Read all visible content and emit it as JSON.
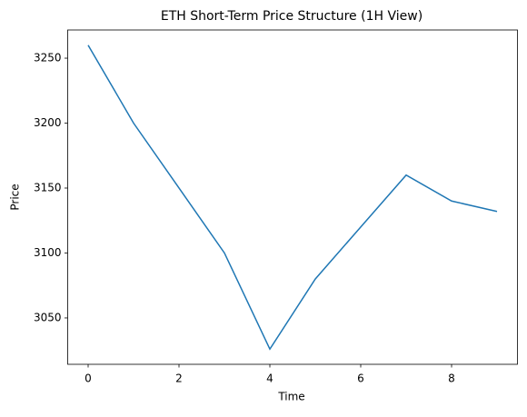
{
  "chart_data": {
    "type": "line",
    "title": "ETH Short-Term Price Structure (1H View)",
    "x_label": "Time",
    "y_label": "Price",
    "x": [
      0,
      1,
      2,
      3,
      4,
      5,
      6,
      7,
      8,
      9
    ],
    "series": [
      {
        "name": "ETH",
        "color": "#1f77b4",
        "values": [
          3260,
          3200,
          3150,
          3100,
          3026,
          3080,
          3120,
          3160,
          3140,
          3132
        ]
      }
    ],
    "xlim": [
      -0.45,
      9.45
    ],
    "xticks": [
      0,
      2,
      4,
      6,
      8
    ],
    "ylim": [
      3014.3,
      3271.7
    ],
    "yticks": [
      3050,
      3100,
      3150,
      3200,
      3250
    ]
  }
}
